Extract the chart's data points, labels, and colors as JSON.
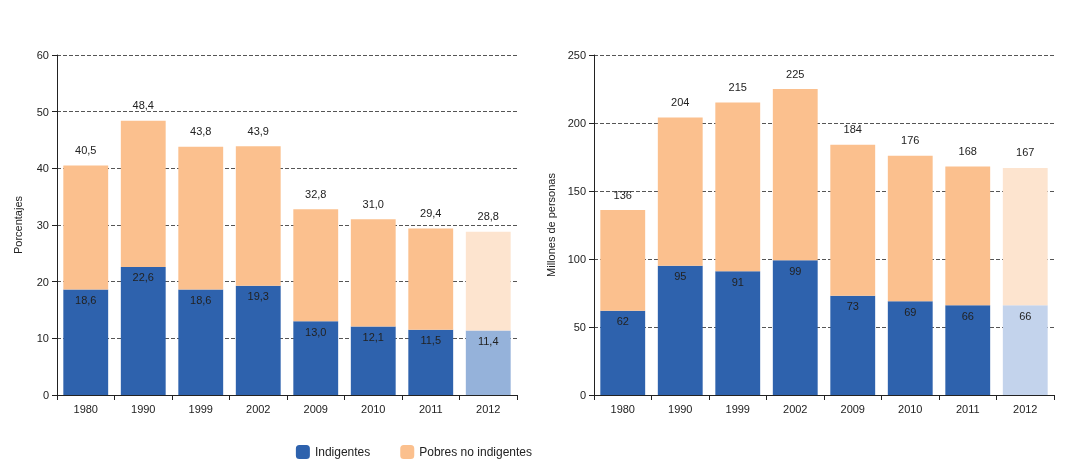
{
  "chart_data": [
    {
      "type": "bar",
      "stacked": true,
      "ylabel": "Porcentajes",
      "categories": [
        "1980",
        "1990",
        "1999",
        "2002",
        "2009",
        "2010",
        "2011",
        "2012"
      ],
      "ylim": [
        0,
        60
      ],
      "yticks": [
        0,
        10,
        20,
        30,
        40,
        50,
        60
      ],
      "grid": "y",
      "legend": "bottom right",
      "series": [
        {
          "name": "Indigentes",
          "colors": [
            "#2e62ad",
            "#2e62ad",
            "#2e62ad",
            "#2e62ad",
            "#2e62ad",
            "#2e62ad",
            "#2e62ad",
            "#95b2da"
          ],
          "values": [
            18.6,
            22.6,
            18.6,
            19.3,
            13.0,
            12.1,
            11.5,
            11.4
          ],
          "value_labels": [
            "18,6",
            "22,6",
            "18,6",
            "19,3",
            "13,0",
            "12,1",
            "11,5",
            "11,4"
          ]
        },
        {
          "name": "Pobres no indigentes",
          "colors": [
            "#fbc08e",
            "#fbc08e",
            "#fbc08e",
            "#fbc08e",
            "#fbc08e",
            "#fbc08e",
            "#fbc08e",
            "#fde4cf"
          ],
          "values": [
            21.9,
            25.8,
            25.2,
            24.6,
            19.8,
            18.9,
            17.9,
            17.4
          ]
        }
      ],
      "totals": [
        "40,5",
        "48,4",
        "43,8",
        "43,9",
        "32,8",
        "31,0",
        "29,4",
        "28,8"
      ]
    },
    {
      "type": "bar",
      "stacked": true,
      "ylabel": "Millones de personas",
      "categories": [
        "1980",
        "1990",
        "1999",
        "2002",
        "2009",
        "2010",
        "2011",
        "2012"
      ],
      "ylim": [
        0,
        250
      ],
      "yticks": [
        0,
        50,
        100,
        150,
        200,
        250
      ],
      "grid": "y",
      "series": [
        {
          "colors": [
            "#2e62ad",
            "#2e62ad",
            "#2e62ad",
            "#2e62ad",
            "#2e62ad",
            "#2e62ad",
            "#2e62ad",
            "#c3d3ec"
          ],
          "values": [
            62,
            95,
            91,
            99,
            73,
            69,
            66,
            66
          ],
          "value_labels": [
            "62",
            "95",
            "91",
            "99",
            "73",
            "69",
            "66",
            "66"
          ]
        },
        {
          "colors": [
            "#fbc08e",
            "#fbc08e",
            "#fbc08e",
            "#fbc08e",
            "#fbc08e",
            "#fbc08e",
            "#fbc08e",
            "#fde4cf"
          ],
          "values": [
            74,
            109,
            124,
            126,
            111,
            107,
            102,
            101
          ]
        }
      ],
      "totals": [
        "136",
        "204",
        "215",
        "225",
        "184",
        "176",
        "168",
        "167"
      ]
    }
  ]
}
